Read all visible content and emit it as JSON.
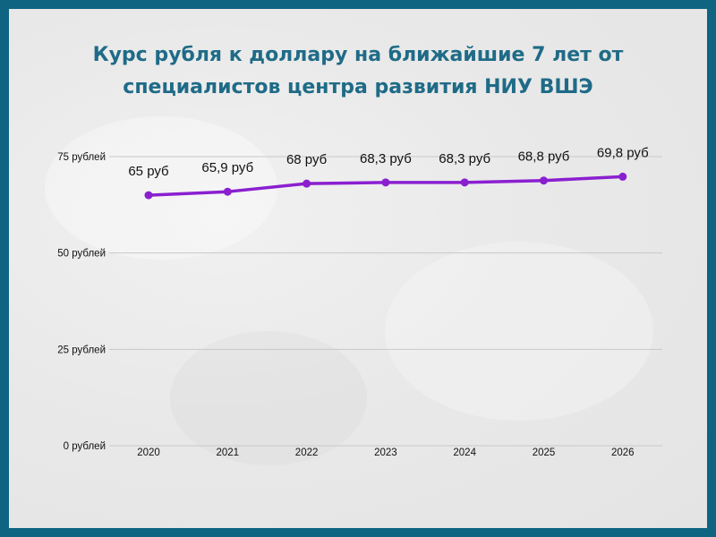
{
  "title_line1": "Курс рубля к доллару на ближайшие 7 лет от",
  "title_line2": "специалистов центра развития НИУ ВШЭ",
  "colors": {
    "border": "#0f6482",
    "title": "#1f6b87",
    "line": "#8a1fd0",
    "grid": "#c8c8c8"
  },
  "chart_data": {
    "type": "line",
    "title": "Курс рубля к доллару на ближайшие 7 лет от специалистов центра развития НИУ ВШЭ",
    "categories": [
      "2020",
      "2021",
      "2022",
      "2023",
      "2024",
      "2025",
      "2026"
    ],
    "series": [
      {
        "values": [
          65,
          65.9,
          68,
          68.3,
          68.3,
          68.8,
          69.8
        ],
        "labels": [
          "65 руб",
          "65,9 руб",
          "68 руб",
          "68,3 руб",
          "68,3 руб",
          "68,8 руб",
          "69,8 руб"
        ]
      }
    ],
    "y_ticks": [
      0,
      25,
      50,
      75
    ],
    "y_tick_labels": [
      "0 рублей",
      "25 рублей",
      "50 рублей",
      "75 рублей"
    ],
    "ylim": [
      0,
      75
    ],
    "grid": true,
    "legend": "none"
  }
}
